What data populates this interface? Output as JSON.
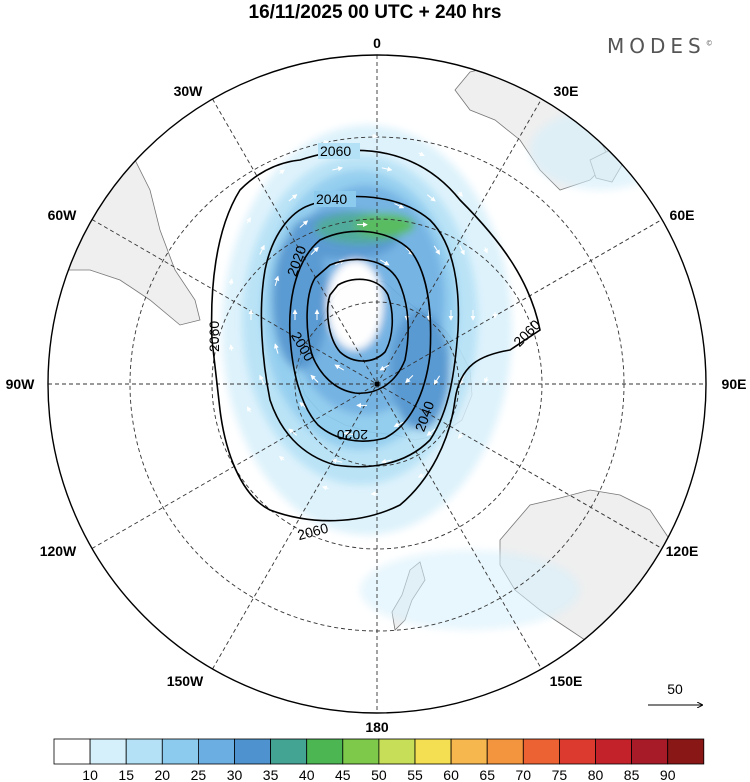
{
  "header": {
    "title": "16/11/2025  00 UTC  + 240 hrs",
    "logo": "MODES",
    "logo_mark": "©"
  },
  "map": {
    "projection": "South polar stereographic",
    "graticule_labels": {
      "lon_0": "0",
      "lon_30e": "30E",
      "lon_60e": "60E",
      "lon_90e": "90E",
      "lon_120e": "120E",
      "lon_150e": "150E",
      "lon_180": "180",
      "lon_150w": "150W",
      "lon_120w": "120W",
      "lon_90w": "90W",
      "lon_60w": "60W",
      "lon_30w": "30W"
    },
    "contour_labels": [
      "2060",
      "2040",
      "2020",
      "2000",
      "2060",
      "2060",
      "2040",
      "2020",
      "2060"
    ],
    "land_color": "#efefef",
    "contour_color": "#000000",
    "wind_vector_color": "#ffffff",
    "reference_vector": "50"
  },
  "colorbar": {
    "levels": [
      "10",
      "15",
      "20",
      "25",
      "30",
      "35",
      "40",
      "45",
      "50",
      "55",
      "60",
      "65",
      "70",
      "75",
      "80",
      "85",
      "90"
    ],
    "colors": [
      "#ffffff",
      "#d6f0fb",
      "#b4e1f6",
      "#8ccbee",
      "#6baee2",
      "#4e93cf",
      "#43a494",
      "#4cb653",
      "#7ec94a",
      "#c7df58",
      "#f4de52",
      "#f6b84e",
      "#f3943f",
      "#ec6232",
      "#dd3a2f",
      "#c3222b",
      "#a71b28",
      "#881716"
    ]
  }
}
